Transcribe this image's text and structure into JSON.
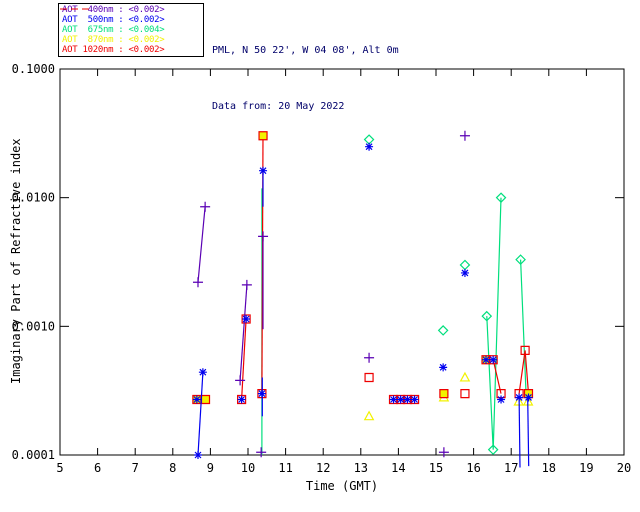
{
  "header": {
    "line1": "PML, N 50 22', W 04 08', Alt 0m",
    "line2": "Data from: 20 May 2022",
    "color": "#00006a"
  },
  "legend": {
    "entries": [
      {
        "id": "400nm",
        "label": "AOT  400nm : <0.002>",
        "color": "#5a00b4"
      },
      {
        "id": "500nm",
        "label": "AOT  500nm : <0.002>",
        "color": "#0000f0"
      },
      {
        "id": "675nm",
        "label": "AOT  675nm : <0.004>",
        "color": "#00df7d"
      },
      {
        "id": "870nm",
        "label": "AOT  870nm : <0.002>",
        "color": "#f2f200"
      },
      {
        "id": "1020nm",
        "label": "AOT 1020nm : <0.002>",
        "color": "#ee0000"
      }
    ]
  },
  "axes": {
    "x": {
      "label": "Time (GMT)",
      "min": 5,
      "max": 20,
      "ticks": [
        5,
        6,
        7,
        8,
        9,
        10,
        11,
        12,
        13,
        14,
        15,
        16,
        17,
        18,
        19,
        20
      ],
      "tick_labels": [
        "5",
        "6",
        "7",
        "8",
        "9",
        "10",
        "11",
        "12",
        "13",
        "14",
        "15",
        "16",
        "17",
        "18",
        "19",
        "20"
      ]
    },
    "y": {
      "label": "Imaginary Part of Refractive index",
      "scale": "log",
      "min": 0.0001,
      "max": 0.1,
      "tick_values": [
        0.1,
        0.01,
        0.001,
        0.0001
      ],
      "tick_labels": [
        "0.1000",
        "0.0100",
        "0.0010",
        "0.0001"
      ]
    }
  },
  "chart_data": {
    "type": "scatter",
    "x_unit": "hours GMT",
    "grid": false,
    "legend_position": "top-left",
    "series": [
      {
        "id": "675nm",
        "name": "AOT 675nm",
        "color": "#00df7d",
        "marker": "diamond",
        "lines": [
          [
            [
              10.37,
              0.0118
            ],
            [
              10.37,
              0.0001
            ]
          ],
          [
            [
              16.35,
              0.0012
            ],
            [
              16.52,
              0.00011
            ],
            [
              16.73,
              0.01
            ]
          ],
          [
            [
              17.25,
              0.0033
            ],
            [
              17.4,
              0.00028
            ]
          ]
        ],
        "points": [
          [
            13.22,
            0.0283
          ],
          [
            15.19,
            0.00093
          ],
          [
            15.77,
            0.003
          ],
          [
            16.35,
            0.0012
          ],
          [
            16.52,
            0.00011
          ],
          [
            16.73,
            0.01
          ],
          [
            17.25,
            0.0033
          ]
        ]
      },
      {
        "id": "870nm",
        "name": "AOT 870nm",
        "color": "#f2f200",
        "marker": "triangle",
        "lines": [],
        "points": [
          [
            13.22,
            0.0002
          ],
          [
            15.77,
            0.0004
          ],
          [
            15.21,
            0.00028
          ],
          [
            17.2,
            0.00026
          ],
          [
            17.45,
            0.00026
          ]
        ]
      },
      {
        "id": "1020nm",
        "name": "AOT 1020nm",
        "color": "#ee0000",
        "marker": "square",
        "fill_color": "#f2f200",
        "lines": [
          [
            [
              8.64,
              0.00027
            ],
            [
              8.87,
              0.00027
            ]
          ],
          [
            [
              9.83,
              0.00027
            ],
            [
              9.95,
              0.00114
            ]
          ],
          [
            [
              10.4,
              0.0303
            ],
            [
              10.37,
              0.0003
            ]
          ],
          [
            [
              13.87,
              0.00027
            ],
            [
              14.43,
              0.00027
            ]
          ],
          [
            [
              16.33,
              0.00055
            ],
            [
              16.52,
              0.00055
            ],
            [
              16.73,
              0.0003
            ]
          ],
          [
            [
              17.21,
              0.0003
            ],
            [
              17.37,
              0.00065
            ],
            [
              17.46,
              0.0003
            ]
          ]
        ],
        "points": [
          [
            9.83,
            0.00027
          ],
          [
            9.95,
            0.00114
          ],
          [
            10.37,
            0.0003
          ],
          [
            13.22,
            0.0004
          ],
          [
            13.87,
            0.00027
          ],
          [
            14.06,
            0.00027
          ],
          [
            14.24,
            0.00027
          ],
          [
            14.43,
            0.00027
          ],
          [
            15.77,
            0.0003
          ],
          [
            16.52,
            0.00055
          ],
          [
            16.73,
            0.0003
          ],
          [
            17.21,
            0.0003
          ],
          [
            17.37,
            0.00065
          ]
        ],
        "filled_points": [
          [
            8.64,
            0.00027
          ],
          [
            8.87,
            0.00027
          ],
          [
            10.4,
            0.0303
          ],
          [
            15.21,
            0.0003
          ],
          [
            16.33,
            0.00055
          ],
          [
            17.46,
            0.0003
          ]
        ]
      },
      {
        "id": "400nm",
        "name": "AOT 400nm",
        "color": "#5a00b4",
        "marker": "plus",
        "lines": [
          [
            [
              8.67,
              0.0022
            ],
            [
              8.86,
              0.0085
            ]
          ],
          [
            [
              9.79,
              0.00038
            ],
            [
              9.97,
              0.0021
            ]
          ],
          [
            [
              10.4,
              0.005
            ],
            [
              10.4,
              0.00095
            ]
          ]
        ],
        "points": [
          [
            8.67,
            0.0022
          ],
          [
            8.86,
            0.0085
          ],
          [
            9.79,
            0.00038
          ],
          [
            9.97,
            0.0021
          ],
          [
            10.4,
            0.005
          ],
          [
            10.35,
            0.000105
          ],
          [
            13.22,
            0.00057
          ],
          [
            15.21,
            0.000105
          ],
          [
            15.77,
            0.0303
          ]
        ]
      },
      {
        "id": "500nm",
        "name": "AOT 500nm",
        "color": "#0000f0",
        "marker": "asterisk",
        "lines": [
          [
            [
              8.67,
              0.0001
            ],
            [
              8.8,
              0.00044
            ]
          ],
          [
            [
              10.4,
              0.0162
            ],
            [
              10.4,
              0.0085
            ]
          ],
          [
            [
              10.38,
              0.0004
            ],
            [
              10.38,
              0.0002
            ]
          ],
          [
            [
              17.21,
              0.00028
            ],
            [
              17.235,
              8e-05
            ]
          ],
          [
            [
              17.44,
              0.00028
            ],
            [
              17.465,
              8.2e-05
            ]
          ]
        ],
        "points": [
          [
            8.67,
            0.0001
          ],
          [
            8.8,
            0.00044
          ],
          [
            8.64,
            0.00027
          ],
          [
            9.83,
            0.00027
          ],
          [
            9.95,
            0.00114
          ],
          [
            10.4,
            0.0162
          ],
          [
            10.37,
            0.0003
          ],
          [
            13.22,
            0.0249
          ],
          [
            13.87,
            0.00027
          ],
          [
            14.06,
            0.00027
          ],
          [
            14.24,
            0.00027
          ],
          [
            14.43,
            0.00027
          ],
          [
            15.19,
            0.00048
          ],
          [
            15.77,
            0.0026
          ],
          [
            16.33,
            0.00055
          ],
          [
            16.52,
            0.00055
          ],
          [
            16.73,
            0.00027
          ],
          [
            17.21,
            0.00028
          ],
          [
            17.46,
            0.00028
          ]
        ]
      }
    ]
  }
}
